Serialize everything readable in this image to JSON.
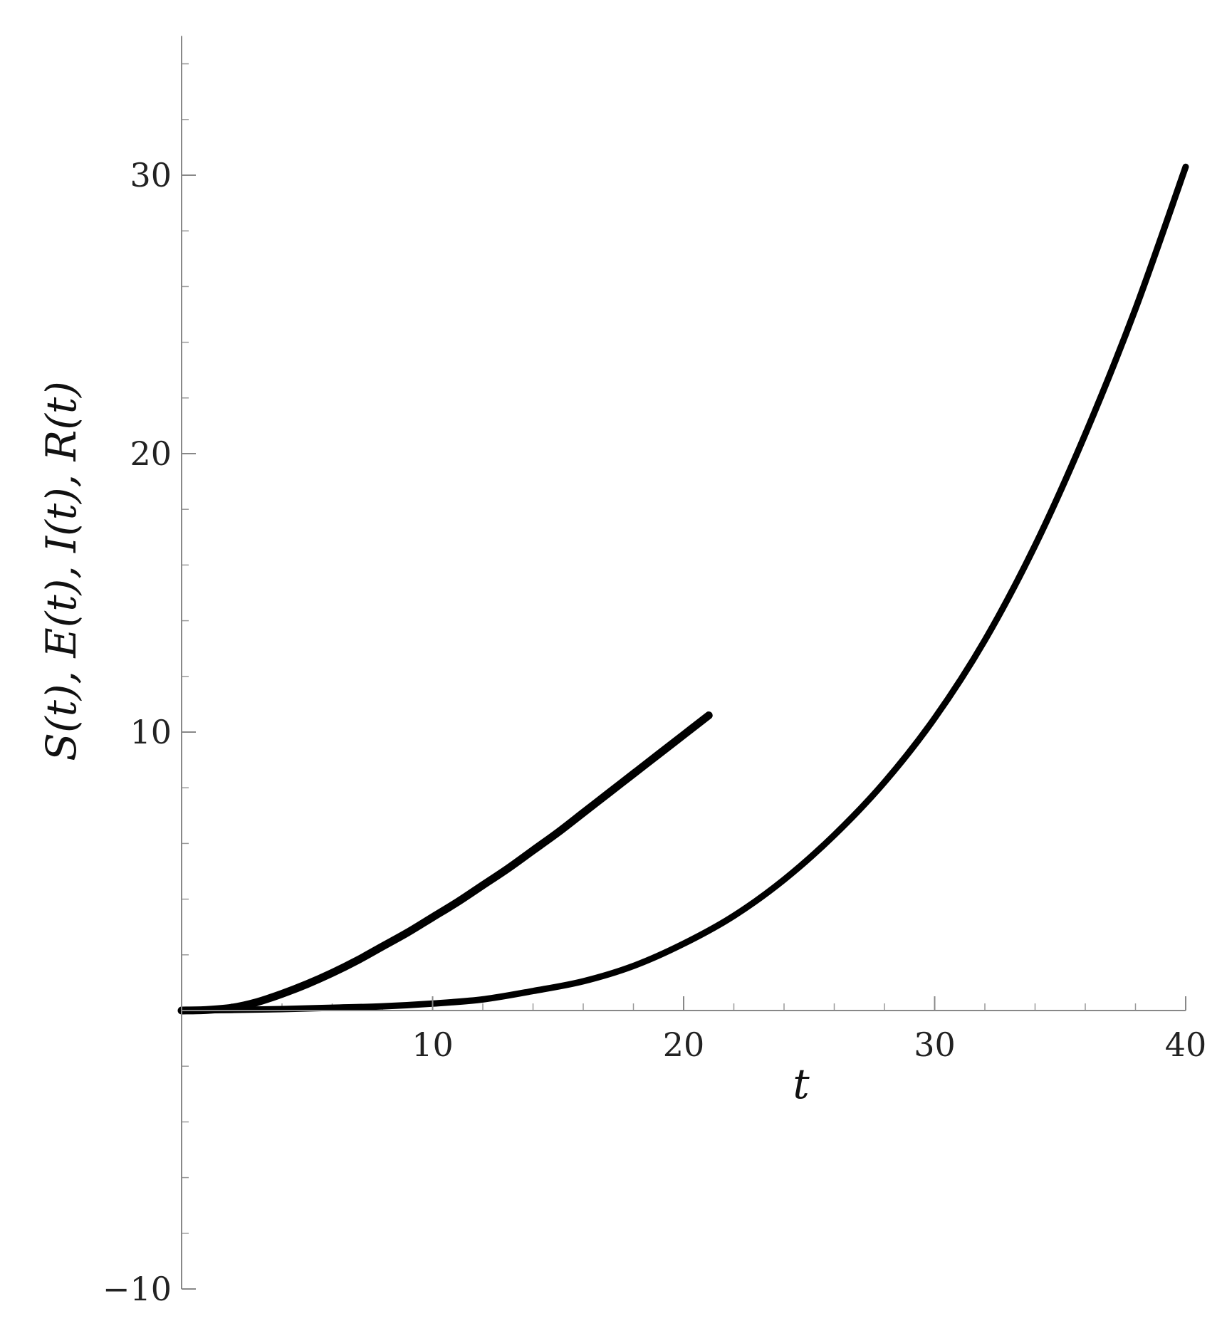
{
  "chart_data": {
    "type": "line",
    "title": "",
    "xlabel": "t",
    "ylabel": "S(t), E(t), I(t), R(t)",
    "xlim": [
      0,
      40
    ],
    "ylim": [
      -10,
      35
    ],
    "x_ticks": [
      10,
      20,
      30,
      40
    ],
    "x_tick_labels": [
      "10",
      "20",
      "30",
      "40"
    ],
    "y_ticks": [
      -10,
      10,
      20,
      30
    ],
    "y_tick_labels": [
      "−10",
      "10",
      "20",
      "30"
    ],
    "x_minor_step": 2,
    "y_minor_step": 2,
    "grid": false,
    "legend": "none",
    "line_color": "#000000",
    "series": [
      {
        "x": [
          0,
          1,
          2,
          3,
          4,
          5,
          6,
          7,
          8,
          9,
          10,
          11,
          12,
          13,
          14,
          15,
          16,
          17,
          18,
          19,
          20,
          21
        ],
        "values": [
          0,
          0.02,
          0.1,
          0.3,
          0.6,
          0.95,
          1.35,
          1.8,
          2.3,
          2.8,
          3.35,
          3.9,
          4.5,
          5.1,
          5.75,
          6.4,
          7.1,
          7.8,
          8.5,
          9.2,
          9.9,
          10.6
        ]
      },
      {
        "x": [
          0,
          2,
          4,
          6,
          8,
          10,
          12,
          14,
          16,
          18,
          20,
          22,
          24,
          26,
          28,
          30,
          32,
          34,
          36,
          38,
          40
        ],
        "values": [
          0,
          0.02,
          0.05,
          0.1,
          0.15,
          0.25,
          0.4,
          0.7,
          1.05,
          1.6,
          2.4,
          3.4,
          4.7,
          6.3,
          8.2,
          10.5,
          13.3,
          16.7,
          20.7,
          25.2,
          30.3
        ]
      }
    ]
  }
}
